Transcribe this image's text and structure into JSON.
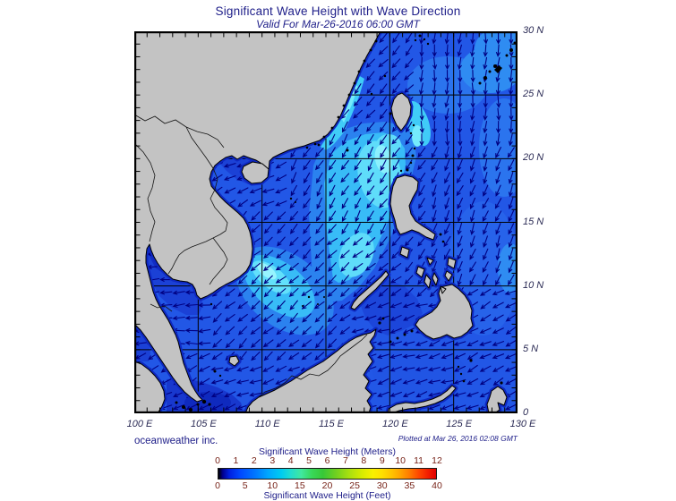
{
  "title": "Significant Wave Height with Wave Direction",
  "subtitle": "Valid For Mar-26-2016 06:00 GMT",
  "credits": {
    "left": "oceanweather inc.",
    "right": "Plotted at Mar 26, 2016 02:08 GMT"
  },
  "axes": {
    "lon_tick_labels": [
      "100 E",
      "105 E",
      "110 E",
      "115 E",
      "120 E",
      "125 E",
      "130 E"
    ],
    "lat_tick_labels": [
      "30 N",
      "25 N",
      "20 N",
      "15 N",
      "10 N",
      "5 N",
      "0"
    ],
    "lon_range": [
      100,
      130
    ],
    "lat_range": [
      0,
      30
    ],
    "grid_step_deg": 5,
    "minor_tick_step_deg": 1
  },
  "legend": {
    "meters_title": "Significant Wave Height (Meters)",
    "feet_title": "Significant Wave Height (Feet)",
    "meters_ticks": [
      "0",
      "1",
      "2",
      "3",
      "4",
      "5",
      "6",
      "7",
      "8",
      "9",
      "10",
      "11",
      "12"
    ],
    "feet_ticks": [
      "0",
      "5",
      "10",
      "15",
      "20",
      "25",
      "30",
      "35",
      "40"
    ],
    "gradient_stops": [
      [
        "0%",
        "#000000"
      ],
      [
        "2%",
        "#000090"
      ],
      [
        "5%",
        "#0020e0"
      ],
      [
        "10%",
        "#0048ff"
      ],
      [
        "17%",
        "#0078ff"
      ],
      [
        "23%",
        "#00a8ff"
      ],
      [
        "29%",
        "#00ccf0"
      ],
      [
        "33%",
        "#20dcd0"
      ],
      [
        "38%",
        "#40e8a0"
      ],
      [
        "43%",
        "#38d858"
      ],
      [
        "48%",
        "#38c838"
      ],
      [
        "54%",
        "#70d020"
      ],
      [
        "60%",
        "#a8e010"
      ],
      [
        "66%",
        "#d8ec00"
      ],
      [
        "71%",
        "#f8f000"
      ],
      [
        "75%",
        "#ffe000"
      ],
      [
        "80%",
        "#ffc000"
      ],
      [
        "84%",
        "#ffa000"
      ],
      [
        "88%",
        "#ff7800"
      ],
      [
        "92%",
        "#ff4800"
      ],
      [
        "96%",
        "#f42000"
      ],
      [
        "100%",
        "#e00000"
      ]
    ]
  },
  "wave_field": {
    "arrow_spacing_deg": 1,
    "default_bearing": 220,
    "zones": [
      {
        "name": "gulf-of-thailand",
        "lon": [
          100,
          105.6
        ],
        "lat": [
          5.5,
          13.8
        ],
        "bearing": 268
      },
      {
        "name": "malacca-south",
        "lon": [
          100,
          105.6
        ],
        "lat": [
          0,
          5.5
        ],
        "bearing": 242
      },
      {
        "name": "pacific-northeast",
        "lon": [
          122,
          130
        ],
        "lat": [
          21,
          30
        ],
        "bearing": 184
      },
      {
        "name": "pacific-east-of-luzon",
        "lon": [
          122.6,
          130
        ],
        "lat": [
          10,
          21
        ],
        "bearing": 202
      },
      {
        "name": "sulu-celebes",
        "lon": [
          117,
          126.5
        ],
        "lat": [
          0,
          9
        ],
        "bearing": 252
      },
      {
        "name": "scs-north-central",
        "lon": [
          112.5,
          122.6
        ],
        "lat": [
          14,
          23
        ],
        "bearing": 212
      },
      {
        "name": "vietnam-china-coast",
        "lon": [
          105.6,
          112.5
        ],
        "lat": [
          16.5,
          23
        ],
        "bearing": 244
      },
      {
        "name": "scs-central",
        "lon": [
          105.6,
          121
        ],
        "lat": [
          4,
          16.5
        ],
        "bearing": 228
      },
      {
        "name": "moluccas-east",
        "lon": [
          126.5,
          130
        ],
        "lat": [
          0,
          10
        ],
        "bearing": 243
      },
      {
        "name": "south-border",
        "lon": [
          105.6,
          116
        ],
        "lat": [
          0,
          4
        ],
        "bearing": 250
      }
    ]
  },
  "colors": {
    "title_text": "#20208a",
    "axis_label_text": "#2b2b55",
    "scale_number_text": "#772318",
    "land": "#c3c3c3",
    "coastline": "#000000",
    "shallow_coast_fringe": "#0e28c2",
    "sea_base": "#2257e6",
    "arrow": "#000082",
    "grid": "#000000"
  }
}
